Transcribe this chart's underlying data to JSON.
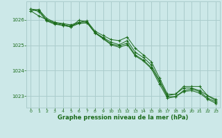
{
  "x": [
    0,
    1,
    2,
    3,
    4,
    5,
    6,
    7,
    8,
    9,
    10,
    11,
    12,
    13,
    14,
    15,
    16,
    17,
    18,
    19,
    20,
    21,
    22,
    23
  ],
  "series1": [
    1026.35,
    1026.4,
    1026.05,
    1025.9,
    1025.85,
    1025.8,
    1025.9,
    1025.95,
    1025.55,
    1025.38,
    1025.22,
    1025.18,
    1025.32,
    1024.88,
    1024.62,
    1024.35,
    1023.72,
    1023.08,
    1023.08,
    1023.38,
    1023.38,
    1023.38,
    1023.02,
    1022.88
  ],
  "series2": [
    1026.35,
    1026.15,
    1026.0,
    1025.88,
    1025.82,
    1025.75,
    1025.88,
    1025.88,
    1025.5,
    1025.3,
    1025.12,
    1025.02,
    1025.18,
    1024.72,
    1024.52,
    1024.22,
    1023.62,
    1023.02,
    1023.08,
    1023.32,
    1023.32,
    1023.22,
    1023.02,
    1022.82
  ],
  "series3": [
    1026.42,
    1026.38,
    1025.98,
    1025.85,
    1025.78,
    1025.72,
    1025.98,
    1025.92,
    1025.48,
    1025.28,
    1025.05,
    1024.98,
    1025.08,
    1024.62,
    1024.42,
    1024.12,
    1023.58,
    1022.98,
    1022.98,
    1023.22,
    1023.28,
    1023.18,
    1022.92,
    1022.78
  ],
  "series4": [
    1026.42,
    1026.32,
    1025.95,
    1025.82,
    1025.78,
    1025.72,
    1025.85,
    1025.88,
    1025.48,
    1025.25,
    1025.02,
    1024.92,
    1025.02,
    1024.58,
    1024.38,
    1024.08,
    1023.48,
    1022.92,
    1022.98,
    1023.18,
    1023.22,
    1023.12,
    1022.88,
    1022.72
  ],
  "line_color": "#1a6b1a",
  "bg_color": "#cce8e8",
  "grid_color": "#aacccc",
  "title": "Graphe pression niveau de la mer (hPa)",
  "ylim_min": 1022.55,
  "ylim_max": 1026.72,
  "yticks": [
    1023,
    1024,
    1025,
    1026
  ],
  "xticks": [
    0,
    1,
    2,
    3,
    4,
    5,
    6,
    7,
    8,
    9,
    10,
    11,
    12,
    13,
    14,
    15,
    16,
    17,
    18,
    19,
    20,
    21,
    22,
    23
  ]
}
